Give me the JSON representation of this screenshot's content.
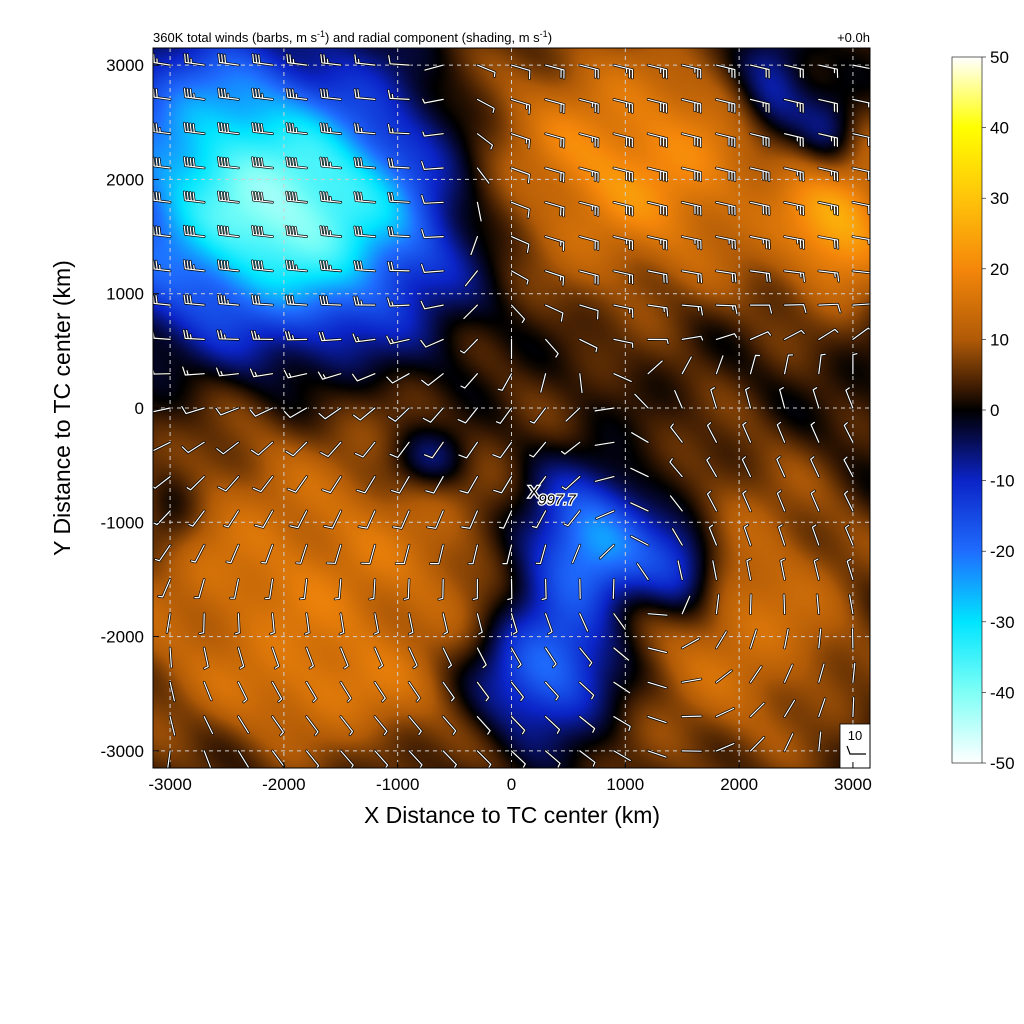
{
  "chart_data": {
    "type": "heatmap",
    "title_main": "360K total winds (barbs, m s",
    "title_mid": ") and radial component (shading, m s",
    "title_end": ")",
    "title_sup": "-1",
    "time_label": "+0.0h",
    "xlabel": "X Distance to TC center (km)",
    "ylabel": "Y Distance to TC center (km)",
    "xlim": [
      -3150,
      3150
    ],
    "ylim": [
      -3150,
      3150
    ],
    "xticks": [
      -3000,
      -2000,
      -1000,
      0,
      1000,
      2000,
      3000
    ],
    "yticks": [
      -3000,
      -2000,
      -1000,
      0,
      1000,
      2000,
      3000
    ],
    "xtick_labels": [
      "-3000",
      "-2000",
      "-1000",
      "0",
      "1000",
      "2000",
      "3000"
    ],
    "ytick_labels": [
      "-3000",
      "-2000",
      "-1000",
      "0",
      "1000",
      "2000",
      "3000"
    ],
    "grid": true,
    "colorbar": {
      "range": [
        -50,
        50
      ],
      "ticks": [
        50,
        40,
        30,
        20,
        10,
        0,
        -10,
        -20,
        -30,
        -40,
        -50
      ],
      "tick_labels": [
        "50",
        "40",
        "30",
        "20",
        "10",
        "0",
        "-10",
        "-20",
        "-30",
        "-40",
        "-50"
      ],
      "stops": [
        {
          "value": -50,
          "color": "#ffffff"
        },
        {
          "value": -40,
          "color": "#7ffff6"
        },
        {
          "value": -30,
          "color": "#00e5ff"
        },
        {
          "value": -20,
          "color": "#1f6cff"
        },
        {
          "value": -10,
          "color": "#0b24c8"
        },
        {
          "value": -3,
          "color": "#050838"
        },
        {
          "value": 0,
          "color": "#000000"
        },
        {
          "value": 3,
          "color": "#3a1a02"
        },
        {
          "value": 10,
          "color": "#b05a07"
        },
        {
          "value": 20,
          "color": "#f5870a"
        },
        {
          "value": 30,
          "color": "#ffc40a"
        },
        {
          "value": 40,
          "color": "#ffff00"
        },
        {
          "value": 50,
          "color": "#ffffff"
        }
      ]
    },
    "radial_field_blobs": [
      {
        "x": -1900,
        "y": 1750,
        "sx": 1050,
        "sy": 750,
        "amp": -44
      },
      {
        "x": -2700,
        "y": 2700,
        "sx": 500,
        "sy": 400,
        "amp": -10
      },
      {
        "x": 900,
        "y": 2100,
        "sx": 1300,
        "sy": 800,
        "amp": 22
      },
      {
        "x": 2900,
        "y": 1600,
        "sx": 350,
        "sy": 500,
        "amp": 20
      },
      {
        "x": -1800,
        "y": -1500,
        "sx": 1600,
        "sy": 1100,
        "amp": 16
      },
      {
        "x": -1600,
        "y": -2500,
        "sx": 700,
        "sy": 300,
        "amp": 6
      },
      {
        "x": 700,
        "y": -1200,
        "sx": 450,
        "sy": 450,
        "amp": -32
      },
      {
        "x": 300,
        "y": -2300,
        "sx": 450,
        "sy": 400,
        "amp": -26
      },
      {
        "x": 1500,
        "y": -1400,
        "sx": 250,
        "sy": 300,
        "amp": -18
      },
      {
        "x": 2300,
        "y": 2800,
        "sx": 250,
        "sy": 400,
        "amp": -16
      },
      {
        "x": 2800,
        "y": 2400,
        "sx": 200,
        "sy": 300,
        "amp": -14
      },
      {
        "x": 2000,
        "y": -1800,
        "sx": 900,
        "sy": 1000,
        "amp": 14
      },
      {
        "x": -700,
        "y": -450,
        "sx": 250,
        "sy": 200,
        "amp": -12
      },
      {
        "x": -3000,
        "y": -900,
        "sx": 200,
        "sy": 300,
        "amp": -8
      }
    ],
    "wind_barbs": {
      "spacing_km": 300,
      "regions": [
        {
          "x": -1900,
          "y": 1800,
          "sx": 1100,
          "sy": 800,
          "u": 38,
          "v": -4
        },
        {
          "x": 1200,
          "y": 2000,
          "sx": 1300,
          "sy": 900,
          "u": -30,
          "v": 8
        },
        {
          "x": -500,
          "y": -800,
          "sx": 1500,
          "sy": 900,
          "u": 6,
          "v": 10
        },
        {
          "x": 0,
          "y": -2200,
          "sx": 1800,
          "sy": 900,
          "u": -8,
          "v": 6
        },
        {
          "x": 1800,
          "y": -1000,
          "sx": 900,
          "sy": 1200,
          "u": 2,
          "v": -10
        }
      ],
      "background": {
        "u": 4,
        "v": -2
      }
    },
    "center_marker": {
      "symbol": "X",
      "x": 200,
      "y": -750,
      "label": "997.7"
    },
    "reference_vector": {
      "label": "10",
      "speed": 10
    }
  }
}
